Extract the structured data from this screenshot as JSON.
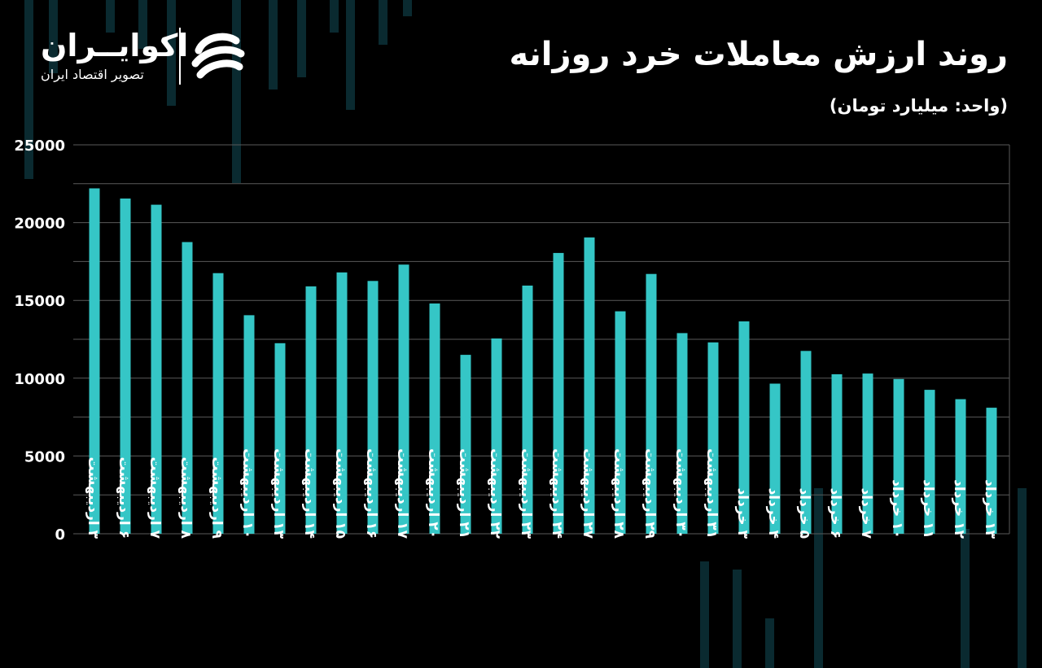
{
  "header": {
    "title": "روند ارزش معاملات خرد روزانه",
    "subtitle": "(واحد: میلیارد تومان)"
  },
  "brand": {
    "name": "اکوایــران",
    "tagline": "تصویر اقتصاد ایران",
    "icon": "ecoiran-logo-icon"
  },
  "colors": {
    "background": "#000000",
    "bar": "#35c6c6",
    "grid": "#5a5a5a",
    "text": "#ffffff",
    "decor": "#0a2a30"
  },
  "chart_data": {
    "type": "bar",
    "title": "روند ارزش معاملات خرد روزانه",
    "subtitle": "(واحد: میلیارد تومان)",
    "ylim": [
      0,
      25000
    ],
    "yticks": [
      0,
      5000,
      10000,
      15000,
      20000,
      25000
    ],
    "ytick_labels": [
      "0",
      "5000",
      "10000",
      "15000",
      "20000",
      "25000"
    ],
    "grid": true,
    "categories": [
      "۳ اردیبهشت",
      "۶ اردیبهشت",
      "۷ اردیبهشت",
      "۸ اردیبهشت",
      "۹ اردیبهشت",
      "۱۰ اردیبهشت",
      "۱۳ اردیبهشت",
      "۱۴ اردیبهشت",
      "۱۵ اردیبهشت",
      "۱۶ اردیبهشت",
      "۱۷ اردیبهشت",
      "۲۰ اردیبهشت",
      "۲۱ اردیبهشت",
      "۲۲ اردیبهشت",
      "۲۳ اردیبهشت",
      "۲۴ اردیبهشت",
      "۲۷ اردیبهشت",
      "۲۸ اردیبهشت",
      "۲۹ اردیبهشت",
      "۳۰ اردیبهشت",
      "۳۱ اردیبهشت",
      "۳ خرداد",
      "۴ خرداد",
      "۵ خرداد",
      "۶ خرداد",
      "۷ خرداد",
      "۱۰ خرداد",
      "۱۱ خرداد",
      "۱۲ خرداد",
      "۱۳ خرداد"
    ],
    "values": [
      22200,
      21550,
      21150,
      18750,
      16750,
      14050,
      12250,
      15900,
      16800,
      16250,
      17300,
      14800,
      11500,
      12550,
      15950,
      18050,
      19050,
      14300,
      16700,
      12900,
      12300,
      13650,
      9650,
      11750,
      10250,
      10300,
      9950,
      9250,
      8650,
      8100
    ]
  }
}
